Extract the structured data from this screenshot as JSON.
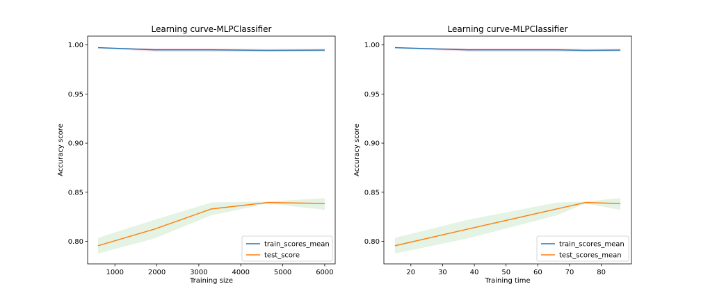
{
  "chart_data": [
    {
      "type": "line",
      "title": "Learning curve-MLPClassifier",
      "xlabel": "Training size",
      "ylabel": "Accuracy score",
      "xlim": [
        350,
        6250
      ],
      "ylim": [
        0.777,
        1.009
      ],
      "xticks": [
        1000,
        2000,
        3000,
        4000,
        5000,
        6000
      ],
      "yticks": [
        0.8,
        0.85,
        0.9,
        0.95,
        1.0
      ],
      "xtick_labels": [
        "1000",
        "2000",
        "3000",
        "4000",
        "5000",
        "6000"
      ],
      "ytick_labels": [
        "0.80",
        "0.85",
        "0.90",
        "0.95",
        "1.00"
      ],
      "x": [
        600,
        1950,
        3300,
        4650,
        6000
      ],
      "series": [
        {
          "name": "train_scores_mean",
          "color": "#1f77b4",
          "values": [
            0.9972,
            0.995,
            0.995,
            0.9945,
            0.9948
          ],
          "band_lower": [
            0.9968,
            0.993,
            0.993,
            0.993,
            0.9932
          ],
          "band_upper": [
            0.9976,
            0.9965,
            0.9965,
            0.996,
            0.9962
          ],
          "band_color": "#f4b6bf"
        },
        {
          "name": "test_score",
          "color": "#ff7f0e",
          "values": [
            0.7955,
            0.8125,
            0.833,
            0.8395,
            0.8385
          ],
          "band_lower": [
            0.7875,
            0.803,
            0.8265,
            0.8385,
            0.832
          ],
          "band_upper": [
            0.8035,
            0.822,
            0.8395,
            0.8405,
            0.844
          ],
          "band_color": "#2ca02c"
        }
      ],
      "grid": false,
      "legend_position": "lower-right"
    },
    {
      "type": "line",
      "title": "Learning curve-MLPClassifier",
      "xlabel": "Training time",
      "ylabel": "Accuracy score",
      "xlim": [
        11.5,
        89.5
      ],
      "ylim": [
        0.777,
        1.009
      ],
      "xticks": [
        20,
        30,
        40,
        50,
        60,
        70,
        80
      ],
      "yticks": [
        0.8,
        0.85,
        0.9,
        0.95,
        1.0
      ],
      "xtick_labels": [
        "20",
        "30",
        "40",
        "50",
        "60",
        "70",
        "80"
      ],
      "ytick_labels": [
        "0.80",
        "0.85",
        "0.90",
        "0.95",
        "1.00"
      ],
      "x": [
        15,
        38,
        66,
        75,
        86
      ],
      "series": [
        {
          "name": "train_scores_mean",
          "color": "#1f77b4",
          "values": [
            0.9972,
            0.995,
            0.995,
            0.9945,
            0.9948
          ],
          "band_lower": [
            0.9968,
            0.993,
            0.993,
            0.993,
            0.9932
          ],
          "band_upper": [
            0.9976,
            0.9965,
            0.9965,
            0.996,
            0.9962
          ],
          "band_color": "#f4b6bf"
        },
        {
          "name": "test_scores_mean",
          "color": "#ff7f0e",
          "values": [
            0.7955,
            0.8125,
            0.833,
            0.8395,
            0.8385
          ],
          "band_lower": [
            0.7875,
            0.803,
            0.8265,
            0.8385,
            0.832
          ],
          "band_upper": [
            0.8035,
            0.822,
            0.8395,
            0.8405,
            0.844
          ],
          "band_color": "#2ca02c"
        }
      ],
      "grid": false,
      "legend_position": "lower-right"
    }
  ]
}
